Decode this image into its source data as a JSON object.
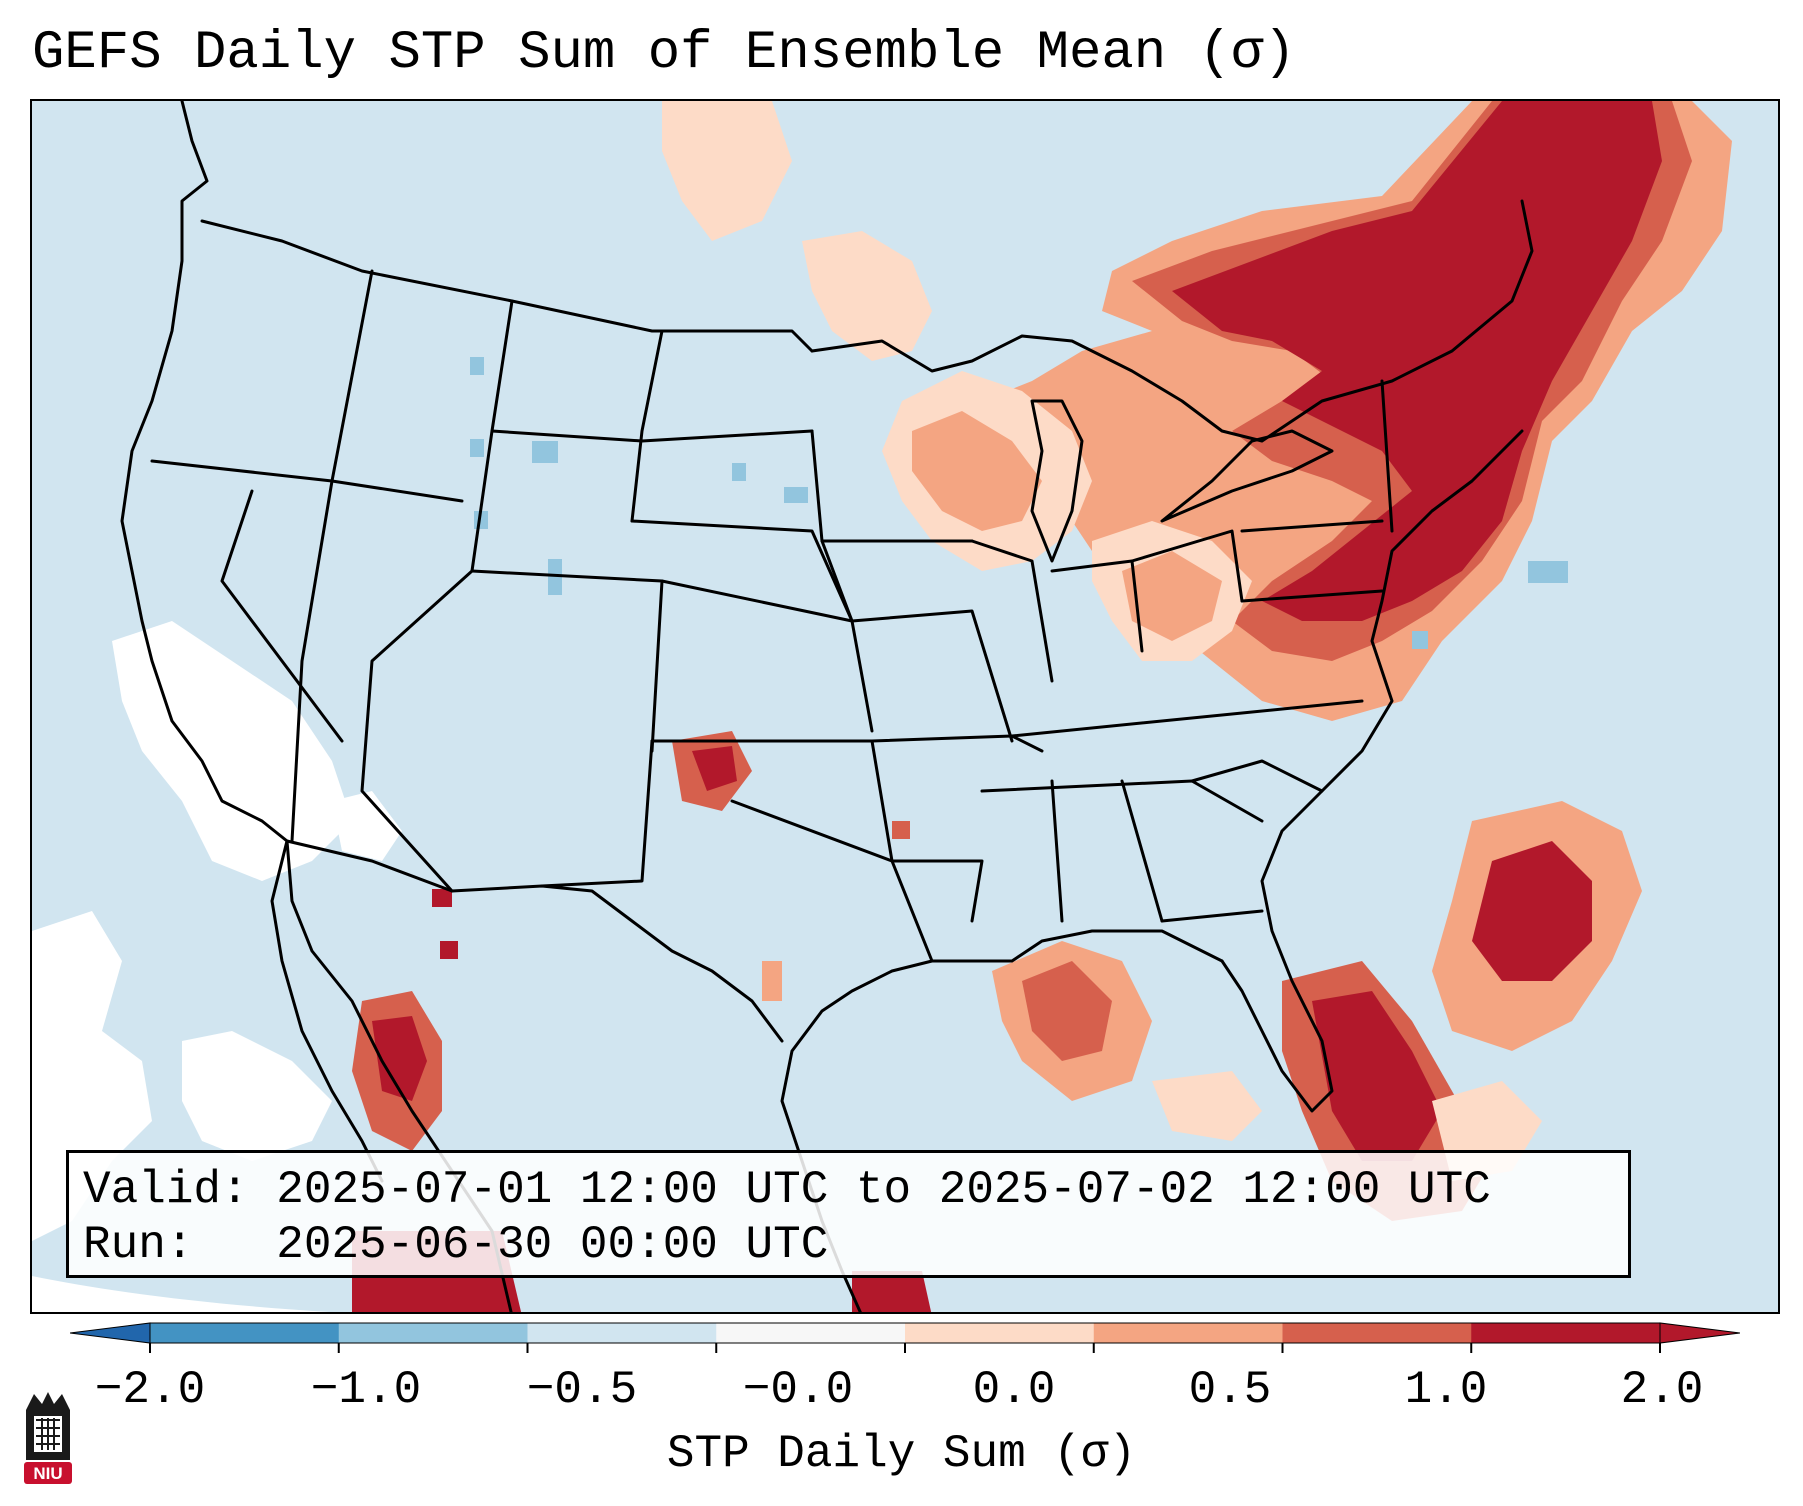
{
  "title": "GEFS Daily STP Sum of Ensemble Mean (σ)",
  "info": {
    "valid_line": "Valid: 2025-07-01 12:00 UTC to 2025-07-02 12:00 UTC",
    "run_line": "Run:   2025-06-30 00:00 UTC"
  },
  "colorbar": {
    "label": "STP Daily Sum (σ)",
    "ticks": [
      "−2.0",
      "−1.0",
      "−0.5",
      "−0.0",
      "0.0",
      "0.5",
      "1.0",
      "2.0"
    ],
    "colors": [
      "#4393c3",
      "#92c5de",
      "#d1e5f0",
      "#f7f7f7",
      "#fddbc7",
      "#f4a582",
      "#d6604d",
      "#b2182b"
    ],
    "extend_low_color": "#2166ac",
    "extend_high_color": "#b2182b"
  },
  "map": {
    "background_color": "#d1e5f0",
    "missing_color": "#ffffff",
    "border_color": "#000000"
  },
  "logo": {
    "text": "NIU",
    "color": "#c8102e"
  }
}
